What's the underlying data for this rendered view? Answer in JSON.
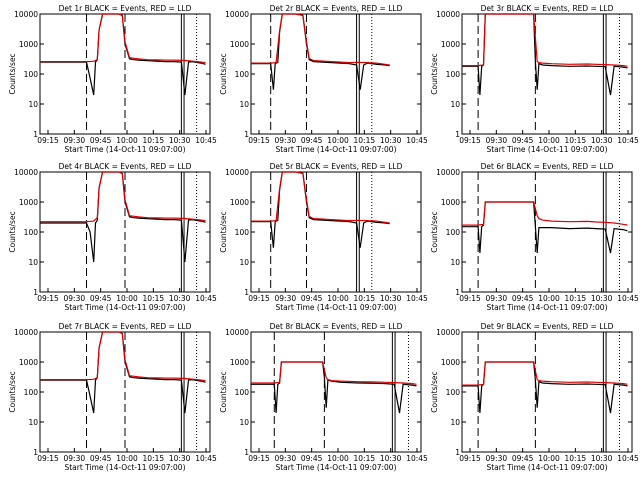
{
  "chart_data": [
    {
      "type": "line",
      "title": "Det 1r BLACK = Events, RED = LLD",
      "xlabel": "Start Time (14-Oct-11 09:07:00)",
      "ylabel": "Counts/sec",
      "x_ticks": [
        "09:15",
        "09:30",
        "09:45",
        "10:00",
        "10:15",
        "10:30",
        "10:45"
      ],
      "y_ticks": [
        "1",
        "10",
        "100",
        "1000",
        "10000"
      ],
      "ylim": [
        1,
        10000
      ],
      "yscale": "log",
      "series": [
        {
          "color": "#000000",
          "x": [
            0,
            52,
            55,
            60,
            62,
            64,
            66,
            70,
            80,
            88,
            92,
            95,
            100,
            105,
            110,
            120,
            130,
            140,
            150,
            158,
            162,
            166,
            170,
            180,
            185
          ],
          "y": [
            250,
            250,
            100,
            20,
            250,
            300,
            3000,
            10000,
            10000,
            10000,
            9000,
            1000,
            320,
            300,
            290,
            280,
            270,
            260,
            260,
            250,
            20,
            250,
            260,
            230,
            210
          ]
        },
        {
          "color": "#dd0000",
          "x": [
            0,
            52,
            60,
            64,
            66,
            70,
            80,
            88,
            92,
            95,
            100,
            110,
            120,
            130,
            140,
            150,
            160,
            170,
            180,
            185
          ],
          "y": [
            260,
            260,
            265,
            300,
            3000,
            10000,
            10000,
            10000,
            9000,
            1200,
            350,
            320,
            300,
            295,
            290,
            290,
            285,
            270,
            250,
            240
          ]
        }
      ]
    },
    {
      "type": "line",
      "title": "Det 2r BLACK = Events, RED = LLD",
      "xlabel": "Start Time (14-Oct-11 09:07:00)",
      "ylabel": "Counts/sec",
      "x_ticks": [
        "09:15",
        "09:30",
        "09:45",
        "10:00",
        "10:15",
        "10:30",
        "10:45"
      ],
      "y_ticks": [
        "1",
        "10",
        "100",
        "1000",
        "10000"
      ],
      "ylim": [
        1,
        10000
      ],
      "yscale": "log",
      "series": [
        {
          "color": "#000000",
          "x": [
            0,
            22,
            25,
            27,
            30,
            32,
            35,
            40,
            50,
            58,
            62,
            65,
            70,
            80,
            90,
            100,
            110,
            118,
            122,
            126,
            130,
            140,
            150,
            155
          ],
          "y": [
            220,
            220,
            30,
            220,
            250,
            2500,
            10000,
            10000,
            10000,
            9000,
            1000,
            300,
            260,
            250,
            240,
            230,
            220,
            200,
            30,
            200,
            230,
            210,
            200,
            190
          ]
        },
        {
          "color": "#dd0000",
          "x": [
            0,
            22,
            28,
            32,
            35,
            40,
            50,
            58,
            62,
            65,
            70,
            80,
            90,
            100,
            110,
            120,
            130,
            140,
            150,
            155
          ],
          "y": [
            230,
            230,
            240,
            2800,
            10000,
            10000,
            10000,
            9000,
            1200,
            330,
            280,
            270,
            260,
            250,
            240,
            245,
            240,
            230,
            210,
            200
          ]
        }
      ]
    },
    {
      "type": "line",
      "title": "Det 3r BLACK = Events, RED = LLD",
      "xlabel": "Start Time (14-Oct-11 09:07:00)",
      "ylabel": "Counts/sec",
      "x_ticks": [
        "09:15",
        "09:30",
        "09:45",
        "10:00",
        "10:15",
        "10:30",
        "10:45"
      ],
      "y_ticks": [
        "1",
        "10",
        "100",
        "1000",
        "10000"
      ],
      "ylim": [
        1,
        10000
      ],
      "yscale": "log",
      "series": [
        {
          "color": "#000000",
          "x": [
            0,
            18,
            20,
            22,
            24,
            26,
            30,
            40,
            60,
            80,
            82,
            84,
            86,
            90,
            100,
            120,
            140,
            150,
            160,
            166,
            170,
            180,
            185
          ],
          "y": [
            180,
            180,
            20,
            180,
            200,
            10000,
            10000,
            10000,
            10000,
            10000,
            250,
            30,
            220,
            200,
            190,
            180,
            185,
            180,
            175,
            20,
            180,
            170,
            160
          ]
        },
        {
          "color": "#dd0000",
          "x": [
            0,
            18,
            24,
            26,
            30,
            40,
            60,
            80,
            84,
            86,
            90,
            100,
            120,
            140,
            150,
            160,
            170,
            180,
            185
          ],
          "y": [
            190,
            190,
            200,
            10000,
            10000,
            10000,
            10000,
            10000,
            260,
            240,
            230,
            220,
            210,
            215,
            210,
            205,
            200,
            190,
            180
          ]
        }
      ]
    },
    {
      "type": "line",
      "title": "Det 4r BLACK = Events, RED = LLD",
      "xlabel": "Start Time (14-Oct-11 09:07:00)",
      "ylabel": "Counts/sec",
      "x_ticks": [
        "09:15",
        "09:30",
        "09:45",
        "10:00",
        "10:15",
        "10:30",
        "10:45"
      ],
      "y_ticks": [
        "1",
        "10",
        "100",
        "1000",
        "10000"
      ],
      "ylim": [
        1,
        10000
      ],
      "yscale": "log",
      "series": [
        {
          "color": "#000000",
          "x": [
            0,
            52,
            56,
            60,
            62,
            64,
            66,
            70,
            80,
            88,
            92,
            95,
            100,
            105,
            110,
            120,
            130,
            140,
            150,
            158,
            162,
            166,
            170,
            180,
            185
          ],
          "y": [
            200,
            200,
            100,
            10,
            200,
            250,
            3000,
            10000,
            10000,
            10000,
            9000,
            1000,
            320,
            300,
            290,
            280,
            270,
            260,
            260,
            250,
            10,
            250,
            260,
            230,
            210
          ]
        },
        {
          "color": "#dd0000",
          "x": [
            0,
            52,
            60,
            64,
            66,
            70,
            80,
            88,
            92,
            95,
            100,
            110,
            120,
            130,
            140,
            150,
            160,
            170,
            180,
            185
          ],
          "y": [
            220,
            220,
            230,
            300,
            3000,
            10000,
            10000,
            10000,
            9000,
            1200,
            350,
            320,
            300,
            295,
            290,
            290,
            285,
            270,
            250,
            240
          ]
        }
      ]
    },
    {
      "type": "line",
      "title": "Det 5r BLACK = Events, RED = LLD",
      "xlabel": "Start Time (14-Oct-11 09:07:00)",
      "ylabel": "Counts/sec",
      "x_ticks": [
        "09:15",
        "09:30",
        "09:45",
        "10:00",
        "10:15",
        "10:30",
        "10:45"
      ],
      "y_ticks": [
        "1",
        "10",
        "100",
        "1000",
        "10000"
      ],
      "ylim": [
        1,
        10000
      ],
      "yscale": "log",
      "series": [
        {
          "color": "#000000",
          "x": [
            0,
            22,
            25,
            27,
            30,
            32,
            35,
            40,
            50,
            58,
            62,
            65,
            70,
            80,
            90,
            100,
            110,
            118,
            122,
            126,
            130,
            140,
            150,
            155
          ],
          "y": [
            220,
            220,
            30,
            220,
            250,
            2500,
            10000,
            10000,
            10000,
            9000,
            1000,
            300,
            260,
            250,
            240,
            230,
            220,
            200,
            30,
            200,
            230,
            210,
            200,
            190
          ]
        },
        {
          "color": "#dd0000",
          "x": [
            0,
            22,
            28,
            32,
            35,
            40,
            50,
            58,
            62,
            65,
            70,
            80,
            90,
            100,
            110,
            120,
            130,
            140,
            150,
            155
          ],
          "y": [
            230,
            230,
            240,
            2800,
            10000,
            10000,
            10000,
            9000,
            1200,
            330,
            280,
            270,
            260,
            250,
            240,
            245,
            240,
            230,
            210,
            200
          ]
        }
      ]
    },
    {
      "type": "line",
      "title": "Det 6r BLACK = Events, RED = LLD",
      "xlabel": "Start Time (14-Oct-11 09:07:00)",
      "ylabel": "Counts/sec",
      "x_ticks": [
        "09:15",
        "09:30",
        "09:45",
        "10:00",
        "10:15",
        "10:30",
        "10:45"
      ],
      "y_ticks": [
        "1",
        "10",
        "100",
        "1000",
        "10000"
      ],
      "ylim": [
        1,
        10000
      ],
      "yscale": "log",
      "series": [
        {
          "color": "#000000",
          "x": [
            0,
            18,
            20,
            22,
            24,
            26,
            30,
            40,
            60,
            80,
            82,
            84,
            86,
            90,
            100,
            120,
            140,
            150,
            160,
            166,
            170,
            180,
            185
          ],
          "y": [
            150,
            150,
            20,
            150,
            170,
            1000,
            1000,
            1000,
            1000,
            1000,
            150,
            20,
            140,
            140,
            140,
            130,
            135,
            130,
            125,
            20,
            130,
            120,
            110
          ]
        },
        {
          "color": "#dd0000",
          "x": [
            0,
            18,
            24,
            26,
            30,
            40,
            60,
            80,
            84,
            86,
            90,
            100,
            120,
            140,
            150,
            160,
            170,
            180,
            185
          ],
          "y": [
            170,
            170,
            180,
            1000,
            1000,
            1000,
            1000,
            1000,
            350,
            280,
            250,
            230,
            220,
            225,
            215,
            210,
            200,
            180,
            170
          ]
        }
      ]
    },
    {
      "type": "line",
      "title": "Det 7r BLACK = Events, RED = LLD",
      "xlabel": "Start Time (14-Oct-11 09:07:00)",
      "ylabel": "Counts/sec",
      "x_ticks": [
        "09:15",
        "09:30",
        "09:45",
        "10:00",
        "10:15",
        "10:30",
        "10:45"
      ],
      "y_ticks": [
        "1",
        "10",
        "100",
        "1000",
        "10000"
      ],
      "ylim": [
        1,
        10000
      ],
      "yscale": "log",
      "series": [
        {
          "color": "#000000",
          "x": [
            0,
            52,
            55,
            60,
            62,
            64,
            66,
            70,
            80,
            88,
            92,
            95,
            100,
            105,
            110,
            120,
            130,
            140,
            150,
            158,
            162,
            166,
            170,
            180,
            185
          ],
          "y": [
            250,
            250,
            100,
            20,
            250,
            300,
            3000,
            10000,
            10000,
            10000,
            9000,
            1000,
            320,
            300,
            290,
            280,
            270,
            260,
            260,
            250,
            20,
            250,
            260,
            230,
            210
          ]
        },
        {
          "color": "#dd0000",
          "x": [
            0,
            52,
            60,
            64,
            66,
            70,
            80,
            88,
            92,
            95,
            100,
            110,
            120,
            130,
            140,
            150,
            160,
            170,
            180,
            185
          ],
          "y": [
            260,
            260,
            265,
            300,
            3000,
            10000,
            10000,
            10000,
            9000,
            1200,
            350,
            320,
            300,
            295,
            290,
            290,
            285,
            270,
            250,
            240
          ]
        }
      ]
    },
    {
      "type": "line",
      "title": "Det 8r BLACK = Events, RED = LLD",
      "xlabel": "Start Time (14-Oct-11 09:07:00)",
      "ylabel": "Counts/sec",
      "x_ticks": [
        "09:15",
        "09:30",
        "09:45",
        "10:00",
        "10:15",
        "10:30",
        "10:45"
      ],
      "y_ticks": [
        "1",
        "10",
        "100",
        "1000",
        "10000"
      ],
      "ylim": [
        1,
        10000
      ],
      "yscale": "log",
      "series": [
        {
          "color": "#000000",
          "x": [
            0,
            26,
            28,
            30,
            32,
            34,
            40,
            60,
            80,
            82,
            84,
            86,
            90,
            100,
            120,
            140,
            150,
            160,
            166,
            170,
            180,
            185
          ],
          "y": [
            180,
            180,
            20,
            180,
            200,
            1000,
            1000,
            1000,
            1000,
            300,
            30,
            250,
            230,
            210,
            200,
            195,
            190,
            180,
            20,
            180,
            170,
            160
          ]
        },
        {
          "color": "#dd0000",
          "x": [
            0,
            26,
            32,
            34,
            40,
            60,
            80,
            84,
            86,
            90,
            100,
            120,
            140,
            150,
            160,
            170,
            180,
            185
          ],
          "y": [
            200,
            200,
            210,
            1000,
            1000,
            1000,
            1000,
            300,
            260,
            240,
            230,
            220,
            215,
            210,
            205,
            200,
            190,
            180
          ]
        }
      ]
    },
    {
      "type": "line",
      "title": "Det 9r BLACK = Events, RED = LLD",
      "xlabel": "Start Time (14-Oct-11 09:07:00)",
      "ylabel": "Counts/sec",
      "x_ticks": [
        "09:15",
        "09:30",
        "09:45",
        "10:00",
        "10:15",
        "10:30",
        "10:45"
      ],
      "y_ticks": [
        "1",
        "10",
        "100",
        "1000",
        "10000"
      ],
      "ylim": [
        1,
        10000
      ],
      "yscale": "log",
      "series": [
        {
          "color": "#000000",
          "x": [
            0,
            18,
            20,
            22,
            24,
            26,
            30,
            40,
            60,
            80,
            82,
            84,
            86,
            90,
            100,
            120,
            140,
            150,
            160,
            166,
            170,
            180,
            185
          ],
          "y": [
            160,
            160,
            20,
            160,
            180,
            1000,
            1000,
            1000,
            1000,
            1000,
            250,
            30,
            220,
            200,
            190,
            180,
            185,
            180,
            175,
            20,
            180,
            170,
            160
          ]
        },
        {
          "color": "#dd0000",
          "x": [
            0,
            18,
            24,
            26,
            30,
            40,
            60,
            80,
            84,
            86,
            90,
            100,
            120,
            140,
            150,
            160,
            170,
            180,
            185
          ],
          "y": [
            170,
            170,
            180,
            1000,
            1000,
            1000,
            1000,
            1000,
            260,
            240,
            230,
            220,
            210,
            215,
            210,
            205,
            200,
            190,
            180
          ]
        }
      ]
    }
  ]
}
